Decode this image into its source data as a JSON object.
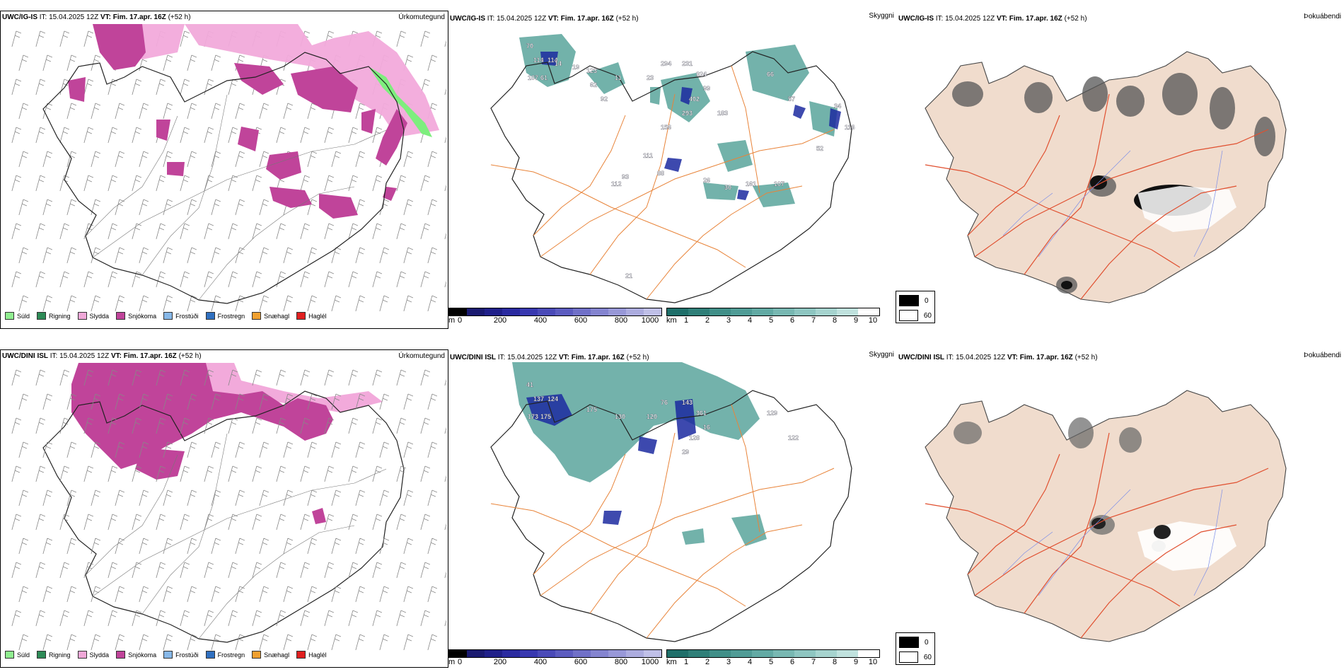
{
  "rows": [
    {
      "model": "UWC/IG-IS",
      "it": "IT: 15.04.2025 12Z",
      "vt_label": "VT:",
      "vt": "Fim. 17.apr. 16Z",
      "lead": "(+52 h)"
    },
    {
      "model": "UWC/DINI ISL",
      "it": "IT: 15.04.2025 12Z",
      "vt_label": "VT:",
      "vt": "Fim. 17.apr. 16Z",
      "lead": "(+52 h)"
    }
  ],
  "panel_titles": {
    "precip": "Úrkomutegund",
    "ceiling": "Skyggni",
    "fog": "Þokuábendi"
  },
  "precip_legend": [
    {
      "label": "Súld",
      "color": "#90ee90"
    },
    {
      "label": "Rigning",
      "color": "#2e8b57"
    },
    {
      "label": "Slydda",
      "color": "#f0a8d8"
    },
    {
      "label": "Snjókoma",
      "color": "#c0449a"
    },
    {
      "label": "Frostúði",
      "color": "#87b8e8"
    },
    {
      "label": "Frostregn",
      "color": "#3070c0"
    },
    {
      "label": "Snæhagl",
      "color": "#f0a030"
    },
    {
      "label": "Haglél",
      "color": "#e02020"
    }
  ],
  "elev_bar": {
    "unit": "m",
    "ticks": [
      "0",
      "200",
      "400",
      "600",
      "800",
      "1000"
    ],
    "colors": [
      "#000000",
      "#1a1a70",
      "#20208a",
      "#2a2aa0",
      "#3838b0",
      "#4a4ab8",
      "#5c5cc0",
      "#7070c8",
      "#8484d0",
      "#9898d8",
      "#acacdf",
      "#c0c0e8"
    ]
  },
  "vis_bar": {
    "unit": "km",
    "ticks": [
      "1",
      "2",
      "3",
      "4",
      "5",
      "6",
      "7",
      "8",
      "9",
      "10"
    ],
    "colors": [
      "#1f6f6a",
      "#2f7f78",
      "#408f88",
      "#509c96",
      "#62aaa4",
      "#78b8b2",
      "#8ec6c1",
      "#a6d4cf",
      "#c0e2de",
      "#ffffff"
    ]
  },
  "fog_legend": [
    {
      "label": "0",
      "color": "#000000"
    },
    {
      "label": "60",
      "color": "#ffffff"
    }
  ],
  "labels_row1": [
    "70",
    "114",
    "114",
    "107",
    "123",
    "61",
    "11",
    "23",
    "294",
    "231",
    "324",
    "99",
    "402",
    "293",
    "66",
    "57",
    "34",
    "116",
    "156",
    "183",
    "52",
    "93",
    "111",
    "88",
    "26",
    "30",
    "161",
    "107",
    "112",
    "21",
    "14",
    "19",
    "62",
    "92"
  ],
  "labels_row2": [
    "41",
    "137",
    "124",
    "173",
    "175",
    "175",
    "130",
    "120",
    "76",
    "143",
    "361",
    "16",
    "128",
    "29",
    "129",
    "122"
  ]
}
